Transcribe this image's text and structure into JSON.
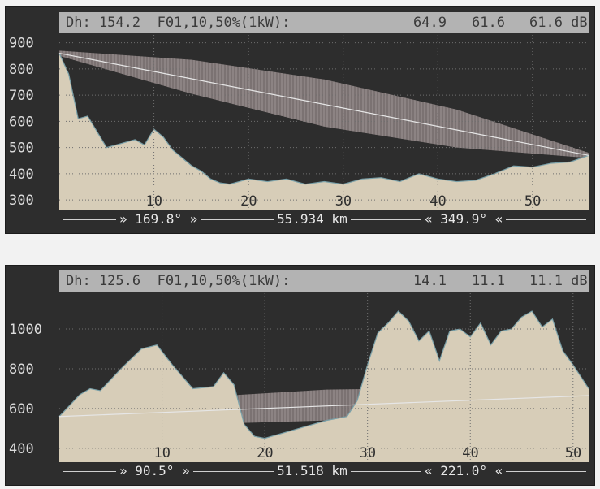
{
  "charts": [
    {
      "header": {
        "label": "Dh: 154.2  F01,10,50%(1kW):",
        "v1": "64.9",
        "v2": "61.6",
        "v3": "61.6 dB"
      },
      "footer": {
        "az_start": "» 169.8° »",
        "distance": "55.934 km",
        "az_end": "« 349.9° «"
      }
    },
    {
      "header": {
        "label": "Dh: 125.6  F01,10,50%(1kW):",
        "v1": "14.1",
        "v2": "11.1",
        "v3": "11.1 dB"
      },
      "footer": {
        "az_start": "» 90.5° »",
        "distance": "51.518 km",
        "az_end": "« 221.0° «"
      }
    }
  ],
  "colors": {
    "background": "#2d2d2d",
    "terrain": "#d7cdb8",
    "fresnel": "#8a7f7f",
    "ray": "#e6e6e6",
    "header": "#b3b3b3",
    "grid": "#6f6f6f"
  },
  "chart_data": [
    {
      "type": "area",
      "xlabel": "",
      "ylabel": "",
      "xlim": [
        0,
        55.934
      ],
      "ylim": [
        260,
        930
      ],
      "x_ticks": [
        "10",
        "20",
        "30",
        "40",
        "50"
      ],
      "y_ticks": [
        "300",
        "400",
        "500",
        "600",
        "700",
        "800",
        "900"
      ],
      "grid": true,
      "terrain": {
        "x": [
          0,
          1,
          2,
          3,
          4,
          5,
          6,
          7,
          8,
          9,
          10,
          11,
          12,
          13,
          14,
          15,
          16,
          17,
          18,
          19,
          20,
          22,
          24,
          26,
          28,
          30,
          32,
          34,
          36,
          38,
          40,
          42,
          44,
          46,
          48,
          50,
          52,
          54,
          55.934
        ],
        "y": [
          860,
          780,
          610,
          620,
          560,
          500,
          510,
          520,
          530,
          510,
          570,
          540,
          490,
          460,
          430,
          410,
          380,
          365,
          360,
          370,
          380,
          370,
          380,
          360,
          370,
          360,
          380,
          385,
          370,
          400,
          380,
          370,
          375,
          400,
          430,
          425,
          440,
          445,
          470
        ]
      },
      "ray": {
        "x": [
          0,
          55.934
        ],
        "y": [
          860,
          470
        ]
      },
      "fresnel_upper": {
        "x": [
          0,
          14,
          28,
          42,
          55.934
        ],
        "y": [
          870,
          835,
          760,
          645,
          480
        ]
      },
      "fresnel_lower": {
        "x": [
          0,
          14,
          28,
          42,
          55.934
        ],
        "y": [
          850,
          705,
          580,
          500,
          460
        ]
      }
    },
    {
      "type": "area",
      "xlabel": "",
      "ylabel": "",
      "xlim": [
        0,
        51.518
      ],
      "ylim": [
        330,
        1180
      ],
      "x_ticks": [
        "10",
        "20",
        "30",
        "40",
        "50"
      ],
      "y_ticks": [
        "400",
        "600",
        "800",
        "1000"
      ],
      "grid": true,
      "terrain": {
        "x": [
          0,
          2,
          3,
          4,
          6,
          8,
          9.5,
          11,
          13,
          15,
          16,
          17,
          18,
          19,
          20,
          22,
          24,
          26,
          28,
          29,
          30,
          31,
          32,
          33,
          34,
          35,
          36,
          37,
          38,
          39,
          40,
          41,
          42,
          43,
          44,
          45,
          46,
          47,
          48,
          49,
          50,
          51.518
        ],
        "y": [
          560,
          670,
          700,
          690,
          800,
          900,
          920,
          820,
          700,
          710,
          780,
          720,
          520,
          460,
          450,
          480,
          510,
          540,
          560,
          640,
          820,
          980,
          1030,
          1090,
          1040,
          940,
          990,
          840,
          990,
          1000,
          960,
          1030,
          920,
          990,
          1000,
          1060,
          1090,
          1010,
          1050,
          890,
          820,
          700
        ]
      },
      "ray": {
        "x": [
          0,
          51.518
        ],
        "y": [
          560,
          665
        ]
      },
      "fresnel_upper": {
        "x": [
          0,
          13,
          26,
          39,
          51.518
        ],
        "y": [
          565,
          655,
          695,
          705,
          700
        ]
      },
      "fresnel_lower": {
        "x": [
          0,
          13,
          26,
          39,
          51.518
        ],
        "y": [
          555,
          520,
          540,
          585,
          650
        ]
      }
    }
  ]
}
